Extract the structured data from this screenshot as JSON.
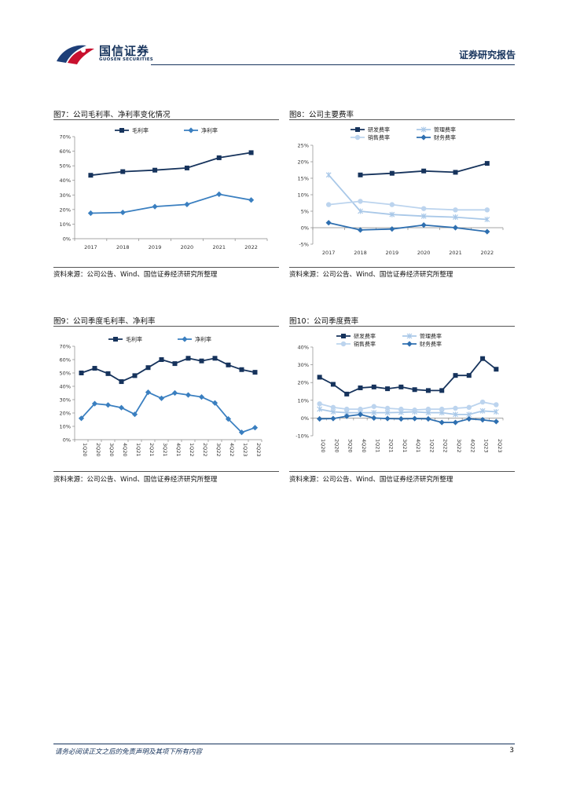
{
  "header": {
    "brand_cn": "国信证券",
    "brand_en": "GUOSEN SECURITIES",
    "report_type": "证券研究报告",
    "accent_color": "#16335c"
  },
  "footer": {
    "disclaimer": "请务必阅读正文之后的免责声明及其项下所有内容",
    "page_number": "3"
  },
  "figures": [
    {
      "title": "图7：公司毛利率、净利率变化情况",
      "source": "资料来源：公司公告、Wind、国信证券经济研究所整理"
    },
    {
      "title": "图8：公司主要费率",
      "source": "资料来源：公司公告、Wind、国信证券经济研究所整理"
    },
    {
      "title": "图9：公司季度毛利率、净利率",
      "source": "资料来源：公司公告、Wind、国信证券经济研究所整理"
    },
    {
      "title": "图10：公司季度费率",
      "source": "资料来源：公司公告、Wind、国信证券经济研究所整理"
    }
  ],
  "chart_data": [
    {
      "type": "line",
      "categories": [
        "2017",
        "2018",
        "2019",
        "2020",
        "2021",
        "2022"
      ],
      "ylim": [
        0,
        70
      ],
      "yticks": [
        0,
        10,
        20,
        30,
        40,
        50,
        60,
        70
      ],
      "ytick_suffix": "%",
      "series": [
        {
          "name": "毛利率",
          "color": "#16335c",
          "marker": "square",
          "values": [
            43.5,
            46,
            47,
            48.5,
            55.5,
            59
          ]
        },
        {
          "name": "净利率",
          "color": "#3a7fc0",
          "marker": "diamond",
          "values": [
            17.5,
            18,
            22,
            23.5,
            30.5,
            26.5
          ]
        }
      ],
      "legend_columns": 2
    },
    {
      "type": "line",
      "categories": [
        "2017",
        "2018",
        "2019",
        "2020",
        "2021",
        "2022"
      ],
      "ylim": [
        -5,
        25
      ],
      "yticks": [
        -5,
        0,
        5,
        10,
        15,
        20,
        25
      ],
      "ytick_suffix": "%",
      "series": [
        {
          "name": "研发费率",
          "color": "#16335c",
          "marker": "square",
          "values": [
            null,
            16,
            16.5,
            17.2,
            16.8,
            19.5
          ]
        },
        {
          "name": "管理费率",
          "color": "#a9c8e8",
          "marker": "cross",
          "values": [
            16,
            5,
            4,
            3.5,
            3.2,
            2.5
          ]
        },
        {
          "name": "销售费率",
          "color": "#bcd4ee",
          "marker": "circle",
          "values": [
            7,
            8,
            7,
            5.8,
            5.4,
            5.4
          ]
        },
        {
          "name": "财务费率",
          "color": "#2e6fb0",
          "marker": "diamond",
          "values": [
            1.5,
            -0.7,
            -0.4,
            0.8,
            0,
            -1.2
          ]
        }
      ],
      "legend_columns": 2
    },
    {
      "type": "line",
      "categories": [
        "1Q20",
        "2Q20",
        "3Q20",
        "4Q20",
        "1Q21",
        "2Q21",
        "3Q21",
        "4Q21",
        "1Q22",
        "2Q22",
        "3Q22",
        "4Q22",
        "1Q23",
        "2Q23"
      ],
      "ylim": [
        0,
        70
      ],
      "yticks": [
        0,
        10,
        20,
        30,
        40,
        50,
        60,
        70
      ],
      "ytick_suffix": "%",
      "series": [
        {
          "name": "毛利率",
          "color": "#16335c",
          "marker": "square",
          "values": [
            50,
            53.5,
            49.5,
            43.5,
            48,
            54,
            60,
            57,
            61,
            59,
            61,
            56,
            52.5,
            50.5
          ]
        },
        {
          "name": "净利率",
          "color": "#3a7fc0",
          "marker": "diamond",
          "values": [
            16,
            27,
            26,
            24,
            19,
            35.5,
            31,
            35,
            33.5,
            32,
            27.5,
            15.5,
            5.5,
            9
          ]
        }
      ],
      "legend_columns": 2
    },
    {
      "type": "line",
      "categories": [
        "1Q20",
        "2Q20",
        "3Q20",
        "4Q20",
        "1Q21",
        "2Q21",
        "3Q21",
        "4Q21",
        "1Q22",
        "2Q22",
        "3Q22",
        "4Q22",
        "1Q23",
        "2Q23"
      ],
      "ylim": [
        -10,
        40
      ],
      "yticks": [
        -10,
        0,
        10,
        20,
        30,
        40
      ],
      "ytick_suffix": "%",
      "series": [
        {
          "name": "研发费率",
          "color": "#16335c",
          "marker": "square",
          "values": [
            23,
            19,
            13.5,
            17,
            17.5,
            16.5,
            17.5,
            16,
            15.5,
            15.5,
            24,
            24,
            33.5,
            27.5
          ]
        },
        {
          "name": "管理费率",
          "color": "#a9c8e8",
          "marker": "cross",
          "values": [
            5,
            3.5,
            3,
            3,
            3,
            3,
            3.2,
            3.5,
            3,
            3,
            2,
            2,
            4,
            3.5
          ]
        },
        {
          "name": "销售费率",
          "color": "#bcd4ee",
          "marker": "circle",
          "values": [
            8,
            6,
            5,
            5,
            6.5,
            5.5,
            5,
            4.5,
            5,
            5,
            5.5,
            6,
            9,
            7.5
          ]
        },
        {
          "name": "财务费率",
          "color": "#2e6fb0",
          "marker": "diamond",
          "values": [
            -0.5,
            -0.3,
            1,
            2,
            0,
            -0.3,
            -0.5,
            -0.3,
            -0.5,
            -2.5,
            -2.5,
            -0.5,
            -1,
            -2
          ]
        }
      ],
      "legend_columns": 2
    }
  ]
}
